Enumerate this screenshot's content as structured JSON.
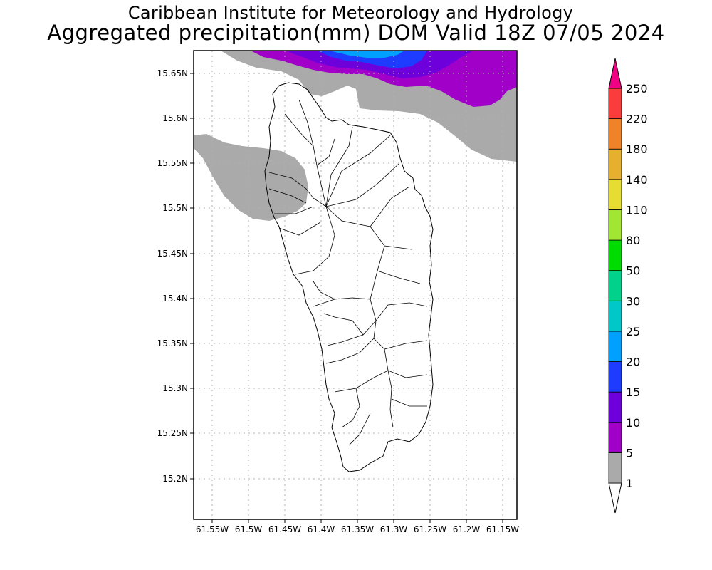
{
  "header": {
    "institute": "Caribbean Institute for Meteorology and Hydrology",
    "product": "Aggregated precipitation(mm) DOM Valid 18Z 07/05 2024"
  },
  "map": {
    "region": "Dominica",
    "lat_range": [
      15.15,
      15.68
    ],
    "lon_range": [
      -61.58,
      -61.13
    ],
    "lat_ticks": [
      "15.2N",
      "15.25N",
      "15.3N",
      "15.35N",
      "15.4N",
      "15.45N",
      "15.5N",
      "15.55N",
      "15.6N",
      "15.65N"
    ],
    "lon_ticks": [
      "61.55W",
      "61.5W",
      "61.45W",
      "61.4W",
      "61.35W",
      "61.3W",
      "61.25W",
      "61.2W",
      "61.15W"
    ],
    "grid": "dotted"
  },
  "colorbar": {
    "labels": [
      "1",
      "5",
      "10",
      "15",
      "20",
      "25",
      "30",
      "50",
      "80",
      "110",
      "140",
      "180",
      "220",
      "250"
    ],
    "colors": [
      "#aaaaaa",
      "#a000c8",
      "#6e00dc",
      "#1e3cff",
      "#00a0ff",
      "#00c8c8",
      "#00d28c",
      "#00dc00",
      "#a0e632",
      "#e6dc32",
      "#e6af2d",
      "#f08228",
      "#fa3c3c",
      "#f00082"
    ]
  },
  "precip_areas": [
    {
      "name": "north-coast",
      "min_mm": 1,
      "max_mm": 20
    },
    {
      "name": "west-coast",
      "min_mm": 1,
      "max_mm": 5
    }
  ]
}
